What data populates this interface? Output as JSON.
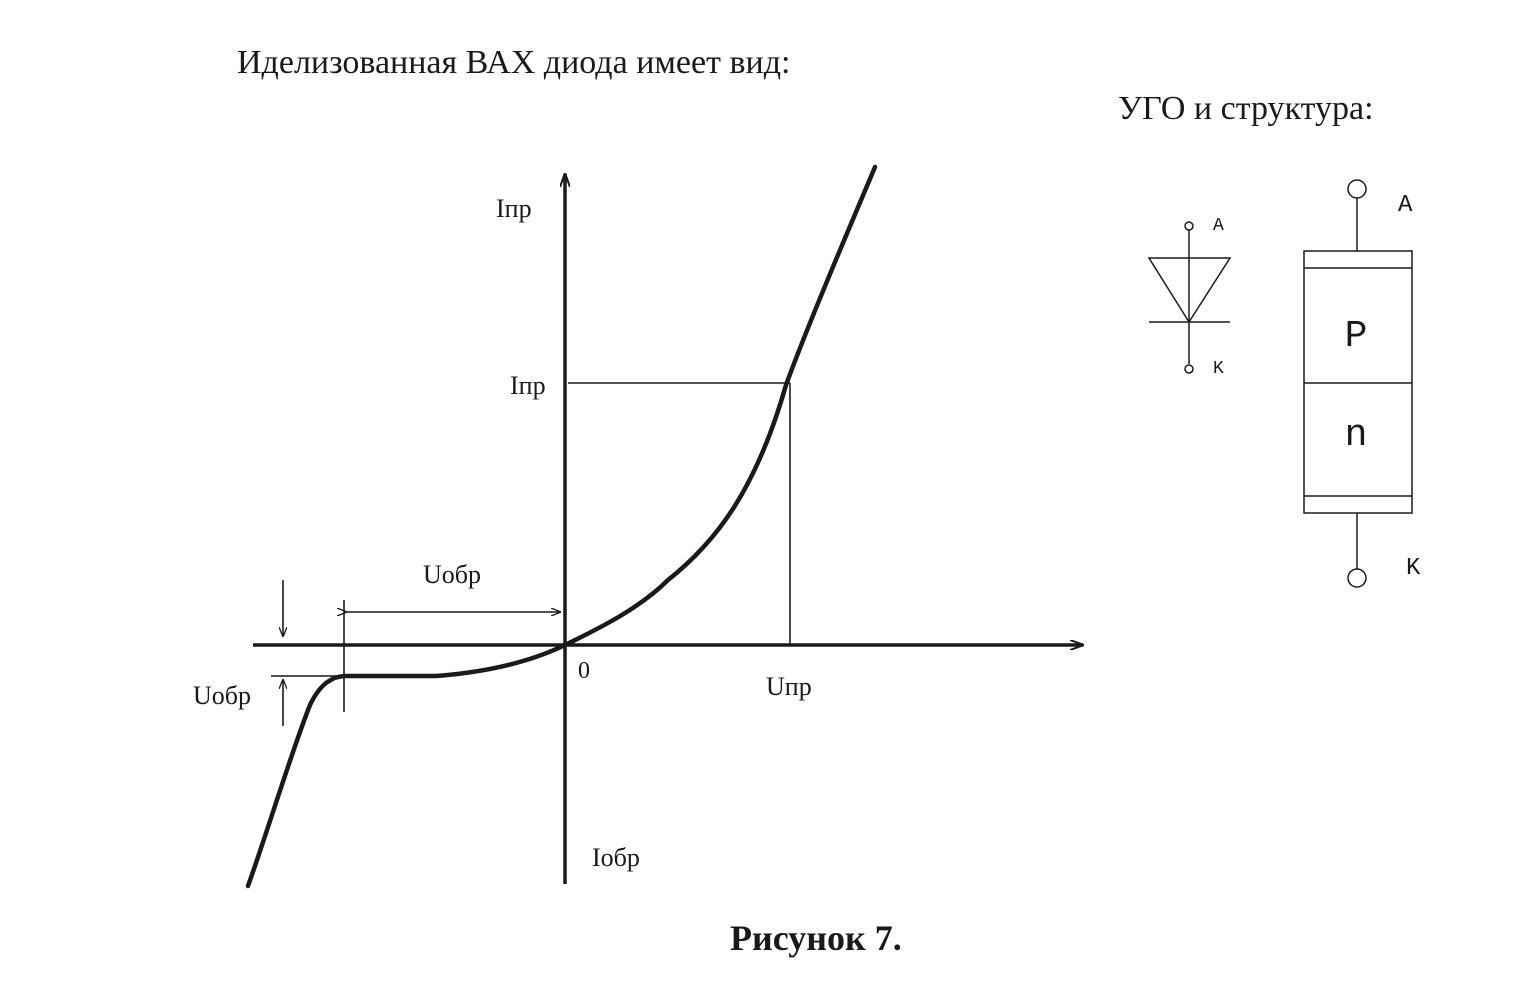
{
  "text": {
    "heading": "Иделизованная ВАХ диода имеет вид:",
    "subheading": "УГО и структура:",
    "caption": "Рисунок 7."
  },
  "iv_chart": {
    "origin_label": "0",
    "y_axis_top_label": "Iпр",
    "y_axis_bottom_label": "Iобр",
    "forward_current_label": "Iпр",
    "forward_voltage_label": "Uпр",
    "reverse_voltage_label": "Uобр",
    "reverse_current_label": "Uобр"
  },
  "symbol": {
    "anode_label": "A",
    "cathode_label": "K"
  },
  "structure": {
    "anode_label": "A",
    "cathode_label": "K",
    "p_region_label": "P",
    "n_region_label": "n"
  }
}
